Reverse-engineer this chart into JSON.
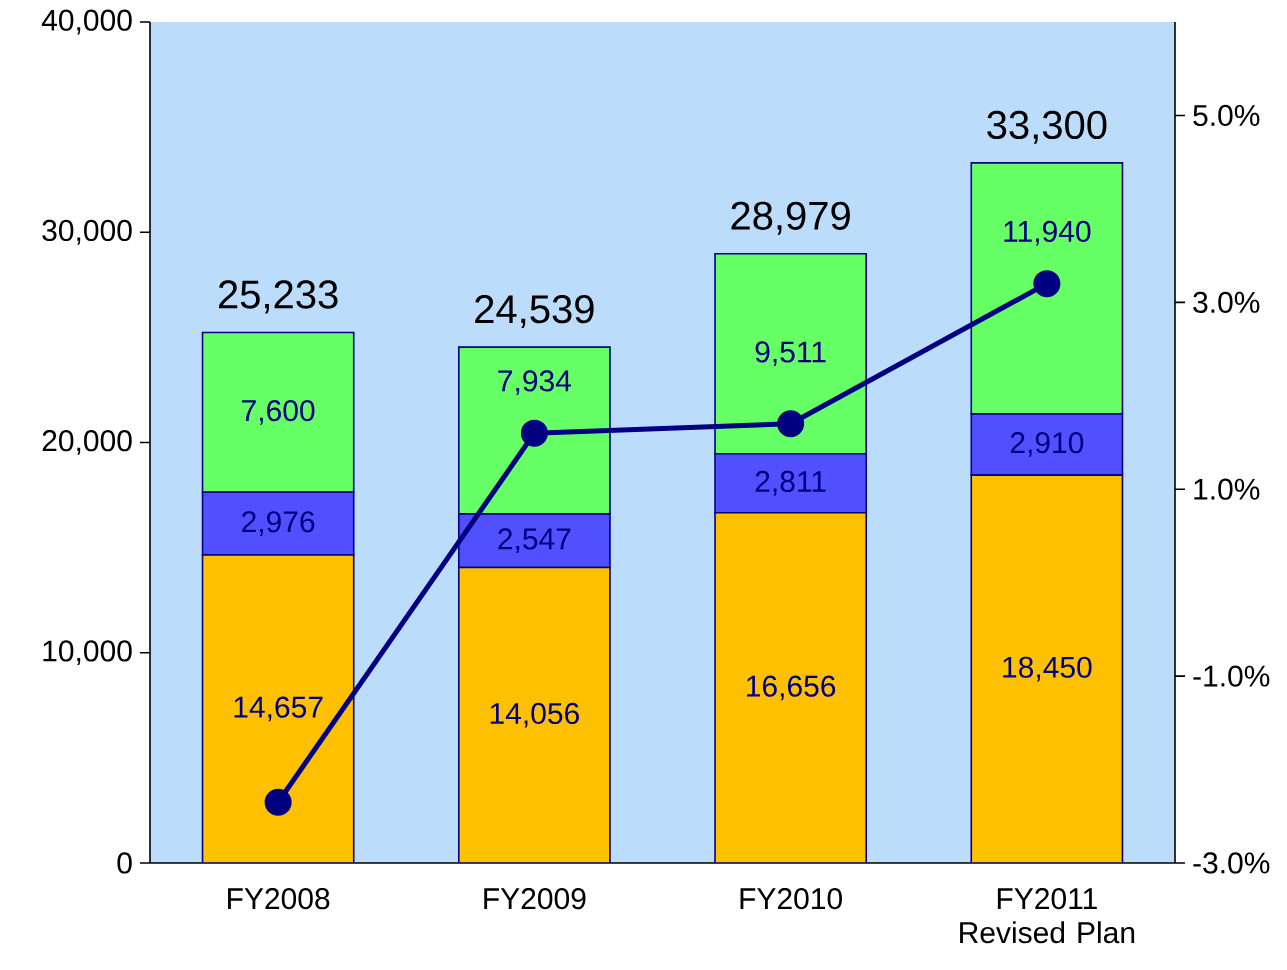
{
  "chart_data": {
    "type": "bar",
    "stacked": true,
    "categories": [
      "FY2008",
      "FY2009",
      "FY2010",
      "FY2011 Revised Plan"
    ],
    "series": [
      {
        "color": "#ffc000",
        "values": [
          14657,
          14056,
          16656,
          18450
        ],
        "value_labels": [
          "14,657",
          "14,056",
          "16,656",
          "18,450"
        ]
      },
      {
        "color": "#5050ff",
        "values": [
          2976,
          2547,
          2811,
          2910
        ],
        "value_labels": [
          "2,976",
          "2,547",
          "2,811",
          "2,910"
        ]
      },
      {
        "color": "#66ff66",
        "values": [
          7600,
          7934,
          9511,
          11940
        ],
        "value_labels": [
          "7,600",
          "7,934",
          "9,511",
          "11,940"
        ]
      },
      {
        "type": "line",
        "axis": "y2",
        "color": "#000080",
        "values": [
          -2.35,
          1.6,
          1.7,
          3.2
        ]
      }
    ],
    "totals": [
      "25,233",
      "24,539",
      "28,979",
      "33,300"
    ],
    "ylim": [
      0,
      40000
    ],
    "yticks": [
      {
        "value": 0,
        "label": "0"
      },
      {
        "value": 10000,
        "label": "10,000"
      },
      {
        "value": 20000,
        "label": "20,000"
      },
      {
        "value": 30000,
        "label": "30,000"
      },
      {
        "value": 40000,
        "label": "40,000"
      }
    ],
    "y2lim": [
      -3,
      6
    ],
    "y2ticks": [
      {
        "value": -3,
        "label": "-3.0%"
      },
      {
        "value": -1,
        "label": "-1.0%"
      },
      {
        "value": 1,
        "label": "1.0%"
      },
      {
        "value": 3,
        "label": "3.0%"
      },
      {
        "value": 5,
        "label": "5.0%"
      }
    ],
    "marker": "circle",
    "line_style": "solid",
    "grid": false
  }
}
